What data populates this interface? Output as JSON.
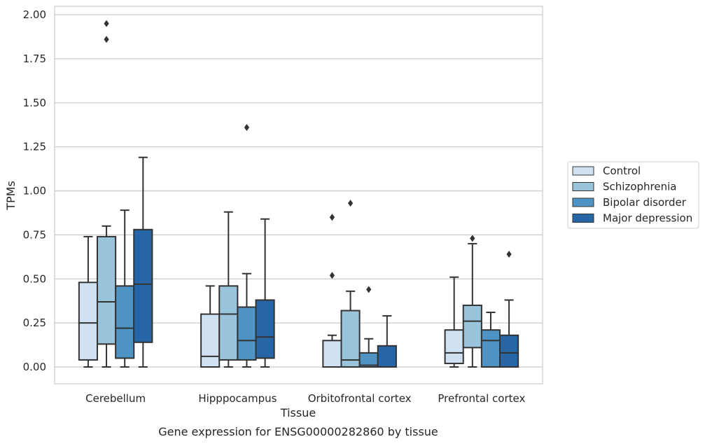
{
  "chart_data": {
    "type": "boxplot",
    "xlabel": "Tissue",
    "ylabel": "TPMs",
    "caption": "Gene expression for ENSG00000282860 by tissue",
    "ylim": [
      -0.1,
      2.05
    ],
    "yticks": [
      "0.00",
      "0.25",
      "0.50",
      "0.75",
      "1.00",
      "1.25",
      "1.50",
      "1.75",
      "2.00"
    ],
    "grid": "horizontal",
    "legend_position": "right",
    "categories": [
      "Cerebellum",
      "Hipppocampus",
      "Orbitofrontal cortex",
      "Prefrontal cortex"
    ],
    "series": [
      {
        "name": "Control",
        "color": "#d0e1f2",
        "boxes": [
          {
            "whislo": 0.0,
            "q1": 0.04,
            "med": 0.25,
            "q3": 0.48,
            "whishi": 0.74,
            "fliers": []
          },
          {
            "whislo": 0.0,
            "q1": 0.0,
            "med": 0.06,
            "q3": 0.3,
            "whishi": 0.46,
            "fliers": []
          },
          {
            "whislo": 0.0,
            "q1": 0.0,
            "med": 0.0,
            "q3": 0.15,
            "whishi": 0.18,
            "fliers": [
              0.52,
              0.85
            ]
          },
          {
            "whislo": 0.0,
            "q1": 0.02,
            "med": 0.08,
            "q3": 0.21,
            "whishi": 0.51,
            "fliers": []
          }
        ]
      },
      {
        "name": "Schizophrenia",
        "color": "#9ac3dc",
        "boxes": [
          {
            "whislo": 0.0,
            "q1": 0.13,
            "med": 0.37,
            "q3": 0.74,
            "whishi": 0.8,
            "fliers": [
              1.86,
              1.95
            ]
          },
          {
            "whislo": 0.0,
            "q1": 0.04,
            "med": 0.3,
            "q3": 0.46,
            "whishi": 0.88,
            "fliers": []
          },
          {
            "whislo": 0.0,
            "q1": 0.0,
            "med": 0.04,
            "q3": 0.32,
            "whishi": 0.43,
            "fliers": [
              0.93
            ]
          },
          {
            "whislo": 0.0,
            "q1": 0.11,
            "med": 0.26,
            "q3": 0.35,
            "whishi": 0.7,
            "fliers": [
              0.73
            ]
          }
        ]
      },
      {
        "name": "Bipolar disorder",
        "color": "#4f93c4",
        "boxes": [
          {
            "whislo": 0.0,
            "q1": 0.05,
            "med": 0.22,
            "q3": 0.46,
            "whishi": 0.89,
            "fliers": []
          },
          {
            "whislo": 0.0,
            "q1": 0.04,
            "med": 0.15,
            "q3": 0.34,
            "whishi": 0.53,
            "fliers": [
              1.36
            ]
          },
          {
            "whislo": 0.0,
            "q1": 0.0,
            "med": 0.01,
            "q3": 0.08,
            "whishi": 0.16,
            "fliers": [
              0.44
            ]
          },
          {
            "whislo": 0.0,
            "q1": 0.0,
            "med": 0.15,
            "q3": 0.21,
            "whishi": 0.31,
            "fliers": []
          }
        ]
      },
      {
        "name": "Major depression",
        "color": "#2666a6",
        "boxes": [
          {
            "whislo": 0.0,
            "q1": 0.14,
            "med": 0.47,
            "q3": 0.78,
            "whishi": 1.19,
            "fliers": []
          },
          {
            "whislo": 0.0,
            "q1": 0.05,
            "med": 0.17,
            "q3": 0.38,
            "whishi": 0.84,
            "fliers": []
          },
          {
            "whislo": 0.0,
            "q1": 0.0,
            "med": 0.0,
            "q3": 0.12,
            "whishi": 0.29,
            "fliers": []
          },
          {
            "whislo": 0.0,
            "q1": 0.0,
            "med": 0.08,
            "q3": 0.18,
            "whishi": 0.38,
            "fliers": [
              0.64
            ]
          }
        ]
      }
    ]
  }
}
